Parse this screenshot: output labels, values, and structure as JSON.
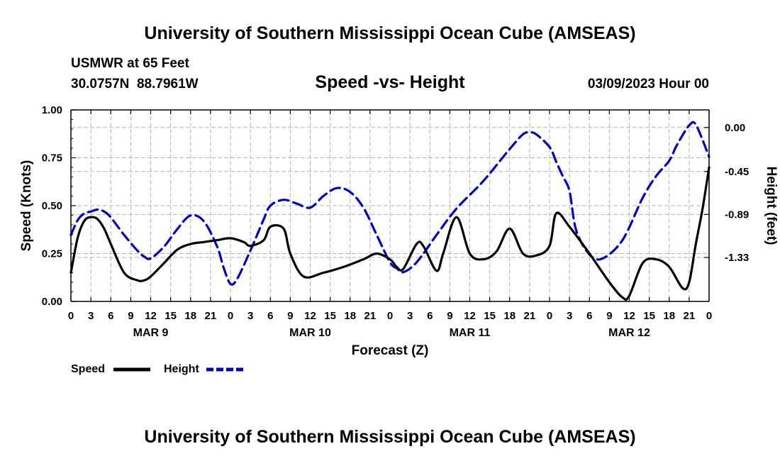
{
  "title": "University of Southern Mississippi Ocean Cube (AMSEAS)",
  "footer_title": "University of Southern Mississippi Ocean Cube (AMSEAS)",
  "station": "USMWR at 65 Feet",
  "location": "30.0757N  88.7961W",
  "subtitle": "Speed -vs- Height",
  "datetime": "03/09/2023 Hour 00",
  "chart_data": {
    "type": "line",
    "title": "Speed -vs- Height",
    "xlabel": "Forecast (Z)",
    "ylabel": "Speed (Knots)",
    "y2label": "Height (feet)",
    "x_hours_range": [
      0,
      96
    ],
    "x_tick_step_hours": 3,
    "x_tick_labels": [
      "0",
      "3",
      "6",
      "9",
      "12",
      "15",
      "18",
      "21",
      "0",
      "3",
      "6",
      "9",
      "12",
      "15",
      "18",
      "21",
      "0",
      "3",
      "6",
      "9",
      "12",
      "15",
      "18",
      "21",
      "0",
      "3",
      "6",
      "9",
      "12",
      "15",
      "18",
      "21",
      "0"
    ],
    "day_labels": [
      {
        "label": "MAR 9",
        "hour": 12
      },
      {
        "label": "MAR 10",
        "hour": 36
      },
      {
        "label": "MAR 11",
        "hour": 60
      },
      {
        "label": "MAR 12",
        "hour": 84
      }
    ],
    "ylim": [
      0,
      1
    ],
    "y_ticks": [
      0,
      0.25,
      0.5,
      0.75,
      1.0
    ],
    "y_tick_labels": [
      "0.00",
      "0.25",
      "0.50",
      "0.75",
      "1.00"
    ],
    "y2lim": [
      -1.78,
      0.18
    ],
    "y2_ticks": [
      0.0,
      -0.45,
      -0.89,
      -1.33
    ],
    "y2_tick_labels": [
      "0.00",
      "-0.45",
      "-0.89",
      "-1.33"
    ],
    "grid": true,
    "legend_position": "bottom-left",
    "series": [
      {
        "name": "Speed",
        "axis": "left",
        "color": "#000000",
        "style": "solid",
        "x": [
          0,
          1,
          2,
          3,
          4,
          5,
          6,
          8,
          10,
          11,
          12,
          14,
          16,
          18,
          20,
          22,
          24,
          26,
          27,
          29,
          30,
          32,
          33,
          35,
          38,
          41,
          44,
          46,
          48,
          49,
          50,
          52,
          53,
          55,
          56,
          58,
          60,
          62,
          64,
          66,
          68,
          70,
          72,
          73,
          75,
          78,
          81,
          83,
          84,
          86,
          88,
          90,
          92,
          93,
          94,
          95,
          96
        ],
        "values": [
          0.15,
          0.33,
          0.42,
          0.44,
          0.43,
          0.38,
          0.3,
          0.15,
          0.11,
          0.11,
          0.13,
          0.2,
          0.27,
          0.3,
          0.31,
          0.32,
          0.33,
          0.31,
          0.29,
          0.32,
          0.39,
          0.38,
          0.25,
          0.13,
          0.15,
          0.18,
          0.22,
          0.25,
          0.22,
          0.18,
          0.17,
          0.3,
          0.29,
          0.16,
          0.25,
          0.44,
          0.25,
          0.22,
          0.26,
          0.38,
          0.25,
          0.24,
          0.29,
          0.46,
          0.39,
          0.25,
          0.1,
          0.02,
          0.03,
          0.2,
          0.22,
          0.18,
          0.07,
          0.1,
          0.3,
          0.48,
          0.7
        ]
      },
      {
        "name": "Height",
        "axis": "right",
        "color": "#0000c8",
        "style": "dashed",
        "x": [
          0,
          1,
          2,
          3,
          4,
          5,
          6,
          8,
          10,
          11,
          12,
          14,
          16,
          18,
          20,
          22,
          23,
          24,
          25,
          27,
          29,
          30,
          32,
          34,
          36,
          38,
          40,
          42,
          44,
          46,
          48,
          49,
          50,
          52,
          55,
          58,
          62,
          66,
          68,
          69,
          70,
          72,
          73,
          74,
          75,
          76,
          78,
          80,
          83,
          86,
          88,
          90,
          91,
          92,
          93,
          94,
          96
        ],
        "values": [
          -1.1,
          -0.95,
          -0.88,
          -0.86,
          -0.84,
          -0.86,
          -0.92,
          -1.1,
          -1.26,
          -1.32,
          -1.34,
          -1.22,
          -1.04,
          -0.9,
          -0.96,
          -1.22,
          -1.44,
          -1.6,
          -1.55,
          -1.26,
          -0.94,
          -0.8,
          -0.74,
          -0.78,
          -0.82,
          -0.7,
          -0.62,
          -0.66,
          -0.82,
          -1.1,
          -1.38,
          -1.44,
          -1.48,
          -1.38,
          -1.1,
          -0.83,
          -0.55,
          -0.22,
          -0.07,
          -0.05,
          -0.07,
          -0.2,
          -0.35,
          -0.5,
          -0.65,
          -1.05,
          -1.3,
          -1.34,
          -1.15,
          -0.72,
          -0.5,
          -0.34,
          -0.2,
          -0.08,
          0.02,
          0.03,
          -0.3
        ]
      }
    ]
  },
  "legend": {
    "speed_label": "Speed",
    "height_label": "Height",
    "speed_color": "#000000",
    "height_color": "#0000c8"
  }
}
